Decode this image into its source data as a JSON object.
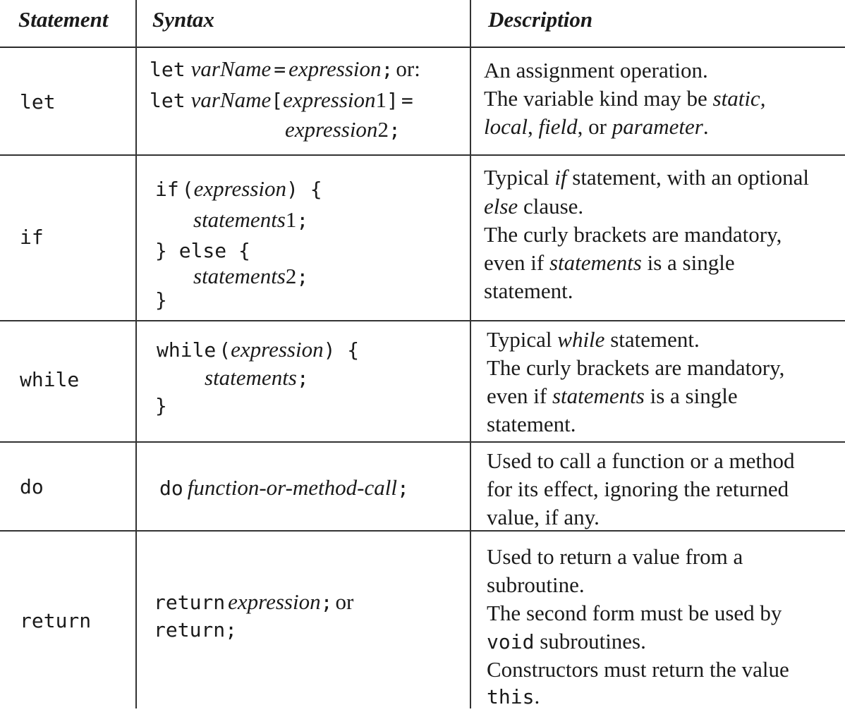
{
  "header": {
    "statement": "Statement",
    "syntax": "Syntax",
    "description": "Description"
  },
  "rows": {
    "let": {
      "statement": "let",
      "syntax": {
        "l1_kw": "let",
        "l1_var": "varName",
        "l1_eq": "=",
        "l1_expr": "expression",
        "l1_semi": ";",
        "l1_or": "or:",
        "l2_kw": "let",
        "l2_var": "varName",
        "l2_lb": "[",
        "l2_expr": "expression",
        "l2_num": "1",
        "l2_rb": "]",
        "l2_eq": "=",
        "l3_expr": "expression",
        "l3_num": "2",
        "l3_semi": ";"
      },
      "description": {
        "d1": "An assignment operation.",
        "d2a": "The variable kind may be ",
        "d2b": "static,",
        "d3a": "local",
        "d3b": ", ",
        "d3c": "field",
        "d3d": ", or ",
        "d3e": "parameter",
        "d3f": "."
      }
    },
    "if": {
      "statement": "if",
      "syntax": {
        "l1_kw": "if",
        "l1_lp": "(",
        "l1_expr": "expression",
        "l1_rp": ") {",
        "l2_st": "statements",
        "l2_num": "1",
        "l2_semi": ";",
        "l3_kw": "} else {",
        "l4_st": "statements",
        "l4_num": "2",
        "l4_semi": ";",
        "l5": "}"
      },
      "description": {
        "d1a": "Typical ",
        "d1b": "if",
        "d1c": " statement, with an optional",
        "d2a": "else",
        "d2b": " clause.",
        "d3": "The curly brackets are mandatory,",
        "d4a": "even if ",
        "d4b": "statements",
        "d4c": " is a single",
        "d5": "statement."
      }
    },
    "while": {
      "statement": "while",
      "syntax": {
        "l1_kw": "while",
        "l1_lp": "(",
        "l1_expr": "expression",
        "l1_rp": ") {",
        "l2_st": "statements",
        "l2_semi": ";",
        "l3": "}"
      },
      "description": {
        "d1a": "Typical ",
        "d1b": "while",
        "d1c": " statement.",
        "d2": "The curly brackets are mandatory,",
        "d3a": "even if ",
        "d3b": "statements",
        "d3c": " is a single",
        "d4": "statement."
      }
    },
    "do": {
      "statement": "do",
      "syntax": {
        "l1_kw": "do",
        "l1_call": "function-or-method-call",
        "l1_semi": ";"
      },
      "description": {
        "d1": "Used to call a function or a method",
        "d2": "for its effect, ignoring the returned",
        "d3": "value, if any."
      }
    },
    "return": {
      "statement": "return",
      "syntax": {
        "l1_kw": "return",
        "l1_expr": "expression",
        "l1_semi": ";",
        "l1_or": "or",
        "l2": "return;"
      },
      "description": {
        "d1": "Used to return a value from a",
        "d2": "subroutine.",
        "d3": "The second form must be used by",
        "d4a": "void",
        "d4b": " subroutines.",
        "d5": "Constructors must return the value",
        "d6a": "this",
        "d6b": "."
      }
    }
  }
}
